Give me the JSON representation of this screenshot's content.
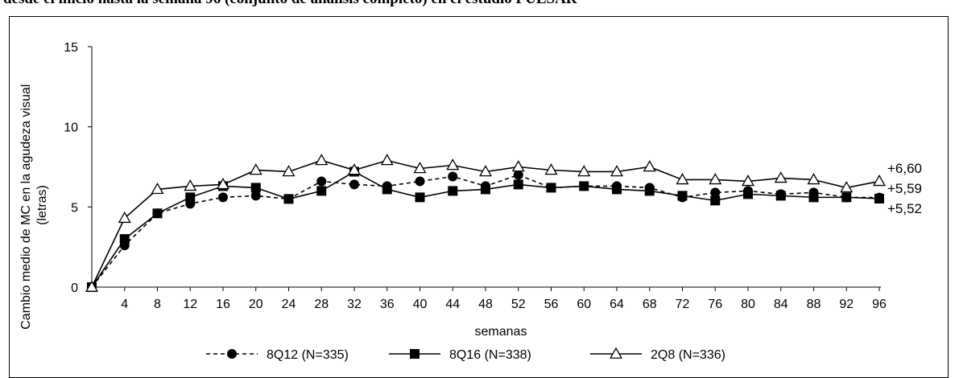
{
  "caption": "desde el inicio hasta la semana 96 (conjunto de análisis completo) en el estudio PULSAR",
  "chart_data": {
    "type": "line",
    "title": "",
    "xlabel": "semanas",
    "ylabel": "Cambio medio de MC en la agudeza visual (letras)",
    "ylim": [
      0,
      15
    ],
    "yticks": [
      0,
      5,
      10,
      15
    ],
    "x": [
      0,
      4,
      8,
      12,
      16,
      20,
      24,
      28,
      32,
      36,
      40,
      44,
      48,
      52,
      56,
      60,
      64,
      68,
      72,
      76,
      80,
      84,
      88,
      92,
      96
    ],
    "x_tick_labels": [
      "4",
      "8",
      "12",
      "16",
      "20",
      "24",
      "28",
      "32",
      "36",
      "40",
      "44",
      "48",
      "52",
      "56",
      "60",
      "64",
      "68",
      "72",
      "76",
      "80",
      "84",
      "88",
      "92",
      "96"
    ],
    "grid": false,
    "legend_position": "bottom",
    "series": [
      {
        "name": "8Q12 (N=335)",
        "line": "dashed",
        "marker": "circle-filled",
        "values": [
          0,
          2.6,
          4.6,
          5.2,
          5.6,
          5.7,
          5.5,
          6.6,
          6.4,
          6.3,
          6.6,
          6.9,
          6.3,
          7.0,
          6.2,
          6.3,
          6.3,
          6.2,
          5.6,
          5.9,
          6.0,
          5.8,
          5.9,
          5.6,
          5.59
        ]
      },
      {
        "name": "8Q16 (N=338)",
        "line": "solid",
        "marker": "square-filled",
        "values": [
          0,
          3.0,
          4.6,
          5.6,
          6.3,
          6.2,
          5.5,
          6.0,
          7.2,
          6.1,
          5.6,
          6.0,
          6.1,
          6.4,
          6.2,
          6.3,
          6.1,
          6.0,
          5.7,
          5.4,
          5.8,
          5.7,
          5.6,
          5.6,
          5.52
        ]
      },
      {
        "name": "2Q8 (N=336)",
        "line": "solid",
        "marker": "triangle-open",
        "values": [
          0,
          4.3,
          6.1,
          6.3,
          6.4,
          7.3,
          7.2,
          7.9,
          7.3,
          7.9,
          7.4,
          7.6,
          7.2,
          7.5,
          7.3,
          7.2,
          7.2,
          7.5,
          6.7,
          6.7,
          6.6,
          6.8,
          6.7,
          6.2,
          6.6
        ]
      }
    ],
    "end_labels": [
      "+6,60",
      "+5,59",
      "+5,52"
    ]
  }
}
